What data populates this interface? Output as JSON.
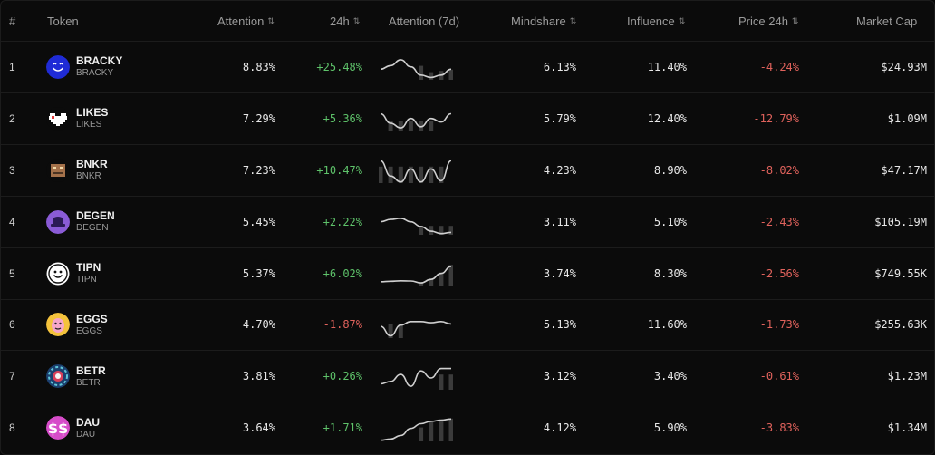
{
  "headers": {
    "index": "#",
    "token": "Token",
    "attention": "Attention",
    "change_24h": "24h",
    "attention_7d": "Attention (7d)",
    "mindshare": "Mindshare",
    "influence": "Influence",
    "price_24h": "Price 24h",
    "market_cap": "Market Cap",
    "sort_icon": "⇅"
  },
  "colors": {
    "positive": "#5ec26a",
    "negative": "#e0625c"
  },
  "rows": [
    {
      "index": "1",
      "name": "BRACKY",
      "symbol": "BRACKY",
      "icon": "blue-smiley-face-icon",
      "attention": "8.83%",
      "change_24h": "+25.48%",
      "change_trend": "positive",
      "mindshare": "6.13%",
      "influence": "11.40%",
      "price_24h": "-4.24%",
      "price_trend": "negative",
      "market_cap": "$24.93M"
    },
    {
      "index": "2",
      "name": "LIKES",
      "symbol": "LIKES",
      "icon": "pixel-heart-icon",
      "attention": "7.29%",
      "change_24h": "+5.36%",
      "change_trend": "positive",
      "mindshare": "5.79%",
      "influence": "12.40%",
      "price_24h": "-12.79%",
      "price_trend": "negative",
      "market_cap": "$1.09M"
    },
    {
      "index": "3",
      "name": "BNKR",
      "symbol": "BNKR",
      "icon": "pixel-robot-icon",
      "attention": "7.23%",
      "change_24h": "+10.47%",
      "change_trend": "positive",
      "mindshare": "4.23%",
      "influence": "8.90%",
      "price_24h": "-8.02%",
      "price_trend": "negative",
      "market_cap": "$47.17M"
    },
    {
      "index": "4",
      "name": "DEGEN",
      "symbol": "DEGEN",
      "icon": "purple-hat-icon",
      "attention": "5.45%",
      "change_24h": "+2.22%",
      "change_trend": "positive",
      "mindshare": "3.11%",
      "influence": "5.10%",
      "price_24h": "-2.43%",
      "price_trend": "negative",
      "market_cap": "$105.19M"
    },
    {
      "index": "5",
      "name": "TIPN",
      "symbol": "TIPN",
      "icon": "white-smiley-face-icon",
      "attention": "5.37%",
      "change_24h": "+6.02%",
      "change_trend": "positive",
      "mindshare": "3.74%",
      "influence": "8.30%",
      "price_24h": "-2.56%",
      "price_trend": "negative",
      "market_cap": "$749.55K"
    },
    {
      "index": "6",
      "name": "EGGS",
      "symbol": "EGGS",
      "icon": "egg-character-icon",
      "attention": "4.70%",
      "change_24h": "-1.87%",
      "change_trend": "negative",
      "mindshare": "5.13%",
      "influence": "11.60%",
      "price_24h": "-1.73%",
      "price_trend": "negative",
      "market_cap": "$255.63K"
    },
    {
      "index": "7",
      "name": "BETR",
      "symbol": "BETR",
      "icon": "poker-chip-icon",
      "attention": "3.81%",
      "change_24h": "+0.26%",
      "change_trend": "positive",
      "mindshare": "3.12%",
      "influence": "3.40%",
      "price_24h": "-0.61%",
      "price_trend": "negative",
      "market_cap": "$1.23M"
    },
    {
      "index": "8",
      "name": "DAU",
      "symbol": "DAU",
      "icon": "dollar-sign-icon",
      "attention": "3.64%",
      "change_24h": "+1.71%",
      "change_trend": "positive",
      "mindshare": "4.12%",
      "influence": "5.90%",
      "price_24h": "-3.83%",
      "price_trend": "negative",
      "market_cap": "$1.34M"
    }
  ],
  "sparklines": [
    {
      "line": [
        0.45,
        0.6,
        0.85,
        0.55,
        0.2,
        0.1,
        0.2,
        0.45
      ],
      "bars": [
        0.0,
        0.0,
        0.0,
        0.0,
        0.55,
        0.3,
        0.35,
        0.4
      ]
    },
    {
      "line": [
        0.75,
        0.35,
        0.15,
        0.55,
        0.2,
        0.55,
        0.4,
        0.75
      ],
      "bars": [
        0.0,
        0.4,
        0.4,
        0.4,
        0.4,
        0.4,
        0.0,
        0.0
      ]
    },
    {
      "line": [
        0.95,
        0.3,
        0.05,
        0.6,
        0.05,
        0.6,
        0.1,
        0.95
      ],
      "bars": [
        0.65,
        0.65,
        0.65,
        0.65,
        0.65,
        0.65,
        0.65,
        0.0
      ]
    },
    {
      "line": [
        0.55,
        0.65,
        0.7,
        0.55,
        0.35,
        0.15,
        0.05,
        0.1
      ],
      "bars": [
        0.0,
        0.0,
        0.0,
        0.0,
        0.35,
        0.35,
        0.35,
        0.35
      ]
    },
    {
      "line": [
        0.2,
        0.22,
        0.24,
        0.23,
        0.15,
        0.3,
        0.55,
        0.85
      ],
      "bars": [
        0.0,
        0.0,
        0.0,
        0.0,
        0.15,
        0.3,
        0.55,
        0.85
      ]
    },
    {
      "line": [
        0.5,
        0.1,
        0.55,
        0.7,
        0.7,
        0.65,
        0.7,
        0.6
      ],
      "bars": [
        0.0,
        0.55,
        0.55,
        0.0,
        0.0,
        0.0,
        0.0,
        0.0
      ]
    },
    {
      "line": [
        0.25,
        0.35,
        0.65,
        0.15,
        0.8,
        0.5,
        0.9,
        0.9
      ],
      "bars": [
        0.0,
        0.0,
        0.0,
        0.0,
        0.0,
        0.0,
        0.6,
        0.6
      ]
    },
    {
      "line": [
        0.05,
        0.1,
        0.25,
        0.55,
        0.75,
        0.85,
        0.9,
        0.95
      ],
      "bars": [
        0.0,
        0.0,
        0.0,
        0.0,
        0.55,
        0.75,
        0.85,
        0.9
      ]
    }
  ]
}
